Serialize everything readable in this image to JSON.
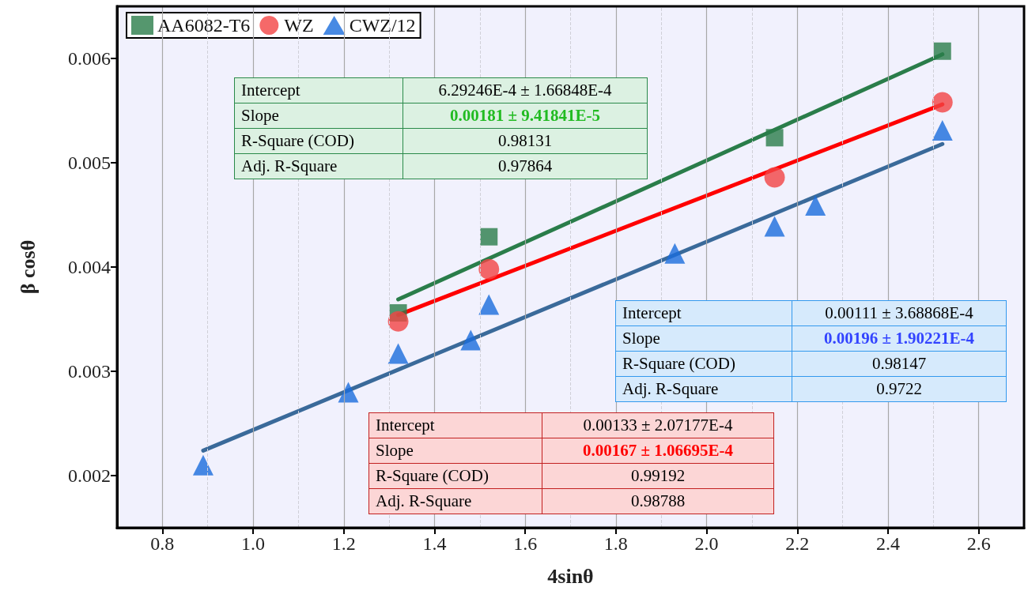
{
  "chart_data": {
    "type": "scatter",
    "xlabel": "4sinθ",
    "ylabel": "β cosθ",
    "xlim": [
      0.7,
      2.7
    ],
    "xticks": [
      0.8,
      {
        "value": 1,
        "label": "1.0"
      },
      1.2,
      1.4,
      1.6,
      1.8,
      {
        "value": 2,
        "label": "2.0"
      },
      2.2,
      2.4,
      2.6
    ],
    "ylim": [
      0.0015,
      0.0065
    ],
    "yticks": [
      0.002,
      0.003,
      0.004,
      0.005,
      0.006
    ],
    "grid": true,
    "legend": "top left",
    "series": [
      {
        "name": "AA6082-T6",
        "color": "#2a7d4a",
        "marker": "square",
        "x": [
          1.32,
          1.52,
          2.15,
          2.52
        ],
        "values": [
          0.00356,
          0.00429,
          0.00524,
          0.00607
        ]
      },
      {
        "name": "WZ",
        "color": "#f24343",
        "marker": "circle",
        "x": [
          1.32,
          1.52,
          2.15,
          2.52
        ],
        "values": [
          0.00348,
          0.00398,
          0.00486,
          0.00558
        ]
      },
      {
        "name": "CWZ/12",
        "color": "#1a6ddc",
        "marker": "triangle",
        "x": [
          0.89,
          1.21,
          1.32,
          1.48,
          1.52,
          1.93,
          2.15,
          2.24,
          2.52
        ],
        "values": [
          0.0021,
          0.0028,
          0.00317,
          0.0033,
          0.00364,
          0.00413,
          0.00439,
          0.00459,
          0.00531
        ]
      },
      {
        "type": "line",
        "color": "#2a7d4a",
        "marker": "none",
        "x": [
          1.32,
          2.52
        ],
        "values": [
          0.00369,
          0.00604
        ]
      },
      {
        "type": "line",
        "color": "#ff0000",
        "marker": "none",
        "x": [
          1.32,
          2.52
        ],
        "values": [
          0.00354,
          0.00556
        ]
      },
      {
        "type": "line",
        "color": "#3a6a9a",
        "marker": "none",
        "x": [
          0.89,
          2.52
        ],
        "values": [
          0.00224,
          0.00518
        ]
      }
    ],
    "annotations": [
      "Intercept",
      "6.29246E-4 ± 1.66848E-4",
      "Slope",
      "0.00181 ± 9.41841E-5",
      "R-Square (COD)",
      "0.98131",
      "Adj. R-Square",
      "0.97864",
      "Intercept",
      "0.00111 ± 3.68868E-4",
      "Slope",
      "0.00196 ± 1.90221E-4",
      "R-Square (COD)",
      "0.98147",
      "Adj. R-Square",
      "0.9722",
      "Intercept",
      "0.00133 ± 2.07177E-4",
      "Slope",
      "0.00167 ± 1.06695E-4",
      "R-Square (COD)",
      "0.99192",
      "Adj. R-Square",
      "0.98788"
    ]
  }
}
